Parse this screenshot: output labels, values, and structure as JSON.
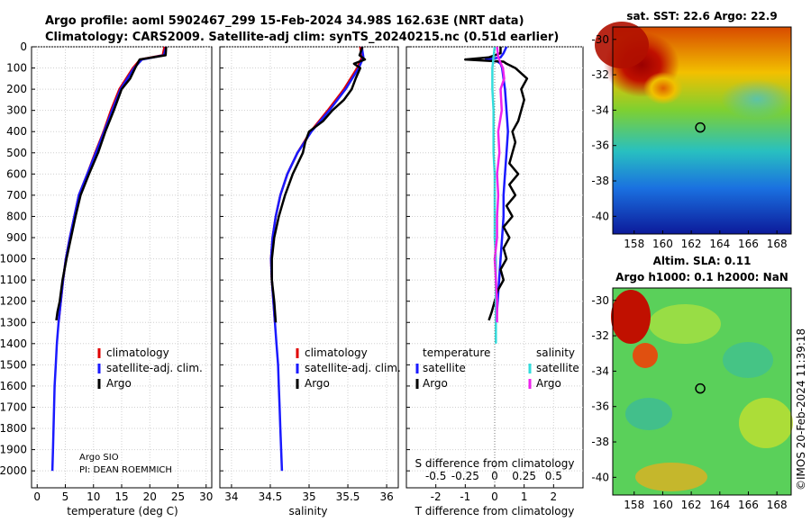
{
  "titles": {
    "line1": "Argo profile: aoml 5902467_299 15-Feb-2024 34.98S 162.63E (NRT data)",
    "line2": "Climatology: CARS2009. Satellite-adj clim: synTS_20240215.nc (0.51d earlier)"
  },
  "legend": {
    "climatology": "climatology",
    "satellite_adj": "satellite-adj. clim.",
    "argo": "Argo",
    "temperature": "temperature",
    "salinity": "salinity",
    "satellite": "satellite"
  },
  "credits": {
    "institution": "Argo SIO",
    "pi": "PI: DEAN ROEMMICH"
  },
  "timestamp": "©IMOS 20-Feb-2024 11:39:18",
  "maps": {
    "sst": {
      "title": "sat. SST: 22.6 Argo: 22.9"
    },
    "sla": {
      "title1": "Altim. SLA: 0.11",
      "title2": "Argo h1000: 0.1 h2000: NaN"
    },
    "lon_ticks": [
      158,
      160,
      162,
      164,
      166,
      168
    ],
    "lat_ticks": [
      -30,
      -32,
      -34,
      -36,
      -38,
      -40
    ],
    "float_lon": 162.63,
    "float_lat": -34.98
  },
  "colors": {
    "climatology": "#e00000",
    "satellite_adj": "#1a1aff",
    "argo": "#000000",
    "cyan": "#33dddd",
    "magenta": "#ee22ee"
  },
  "chart_data": [
    {
      "type": "line",
      "xlabel": "temperature (deg C)",
      "ylabel": "",
      "xlim": [
        -1,
        31
      ],
      "ylim": [
        0,
        2080
      ],
      "xticks": [
        0,
        5,
        10,
        15,
        20,
        25,
        30
      ],
      "yticks": [
        0,
        100,
        200,
        300,
        400,
        500,
        600,
        700,
        800,
        900,
        1000,
        1100,
        1200,
        1300,
        1400,
        1500,
        1600,
        1700,
        1800,
        1900,
        2000
      ],
      "series": [
        {
          "name": "climatology",
          "depth": [
            0,
            40,
            60,
            100,
            150,
            200,
            300,
            400,
            500,
            600,
            700,
            800,
            900,
            1000,
            1100,
            1200,
            1300
          ],
          "values": [
            22.6,
            22.3,
            18.3,
            17.0,
            15.8,
            14.6,
            13.1,
            11.8,
            10.3,
            8.9,
            7.4,
            6.6,
            5.8,
            5.1,
            4.6,
            4.2,
            3.8
          ]
        },
        {
          "name": "satellite-adj. clim.",
          "depth": [
            0,
            40,
            60,
            100,
            150,
            200,
            300,
            400,
            500,
            600,
            700,
            800,
            900,
            1000,
            1100,
            1200,
            1300,
            1400,
            1500,
            1600,
            1700,
            1800,
            1900,
            2000
          ],
          "values": [
            22.9,
            22.5,
            18.6,
            17.2,
            16.0,
            14.8,
            13.3,
            11.9,
            10.4,
            8.9,
            7.4,
            6.6,
            5.8,
            5.1,
            4.6,
            4.2,
            3.8,
            3.5,
            3.3,
            3.1,
            3.0,
            2.9,
            2.8,
            2.7
          ]
        },
        {
          "name": "Argo",
          "depth": [
            0,
            40,
            60,
            80,
            100,
            150,
            200,
            300,
            400,
            500,
            600,
            700,
            800,
            900,
            1000,
            1100,
            1200,
            1250,
            1290
          ],
          "values": [
            22.9,
            22.8,
            18.2,
            17.8,
            17.4,
            16.5,
            15.0,
            13.6,
            12.1,
            10.8,
            9.2,
            7.7,
            6.8,
            6.0,
            5.2,
            4.5,
            4.0,
            3.6,
            3.4
          ]
        }
      ]
    },
    {
      "type": "line",
      "xlabel": "salinity",
      "ylabel": "",
      "xlim": [
        33.85,
        36.15
      ],
      "ylim": [
        0,
        2080
      ],
      "xticks": [
        34,
        34.5,
        35,
        35.5,
        36
      ],
      "series": [
        {
          "name": "climatology",
          "depth": [
            0,
            50,
            100,
            200,
            300,
            400,
            500,
            600,
            700,
            800,
            900,
            1000,
            1100,
            1200,
            1300
          ],
          "values": [
            35.66,
            35.68,
            35.62,
            35.45,
            35.24,
            35.02,
            34.85,
            34.72,
            34.63,
            34.57,
            34.53,
            34.51,
            34.52,
            34.54,
            34.56
          ]
        },
        {
          "name": "satellite-adj. clim.",
          "depth": [
            0,
            50,
            100,
            200,
            300,
            400,
            500,
            600,
            700,
            800,
            900,
            1000,
            1100,
            1200,
            1300,
            1400,
            1500,
            1600,
            1700,
            1800,
            1900,
            2000
          ],
          "values": [
            35.68,
            35.7,
            35.64,
            35.47,
            35.26,
            35.03,
            34.85,
            34.72,
            34.63,
            34.57,
            34.53,
            34.51,
            34.52,
            34.54,
            34.56,
            34.58,
            34.6,
            34.61,
            34.62,
            34.63,
            34.64,
            34.65
          ]
        },
        {
          "name": "Argo",
          "depth": [
            0,
            40,
            60,
            80,
            100,
            150,
            200,
            250,
            300,
            350,
            400,
            450,
            500,
            600,
            700,
            800,
            900,
            1000,
            1100,
            1200,
            1300
          ],
          "values": [
            35.69,
            35.65,
            35.72,
            35.58,
            35.66,
            35.6,
            35.55,
            35.45,
            35.3,
            35.18,
            35.0,
            34.95,
            34.92,
            34.79,
            34.69,
            34.61,
            34.55,
            34.52,
            34.52,
            34.55,
            34.57
          ]
        }
      ]
    },
    {
      "type": "line",
      "xlabel": "T difference from climatology",
      "xlabel2": "S difference from climatology",
      "xlim": [
        -3,
        3
      ],
      "ylim": [
        0,
        2080
      ],
      "xticks": [
        -2,
        -1,
        0,
        1,
        2
      ],
      "xticks_top": [
        -0.5,
        -0.25,
        0,
        0.25,
        0.5
      ],
      "series": [
        {
          "name": "temperature satellite",
          "depth": [
            0,
            30,
            50,
            60,
            70,
            80,
            100,
            150,
            200,
            300,
            400,
            500,
            600,
            700,
            800,
            900,
            1000,
            1100,
            1200,
            1300
          ],
          "values": [
            0.4,
            0.3,
            0.2,
            -0.3,
            0.1,
            0.2,
            0.25,
            0.3,
            0.35,
            0.4,
            0.45,
            0.4,
            0.35,
            0.3,
            0.3,
            0.25,
            0.2,
            0.15,
            0.1,
            0.05
          ]
        },
        {
          "name": "temperature Argo",
          "depth": [
            0,
            30,
            50,
            60,
            65,
            70,
            80,
            100,
            150,
            200,
            250,
            300,
            350,
            400,
            450,
            500,
            550,
            600,
            650,
            700,
            750,
            800,
            850,
            900,
            950,
            1000,
            1050,
            1100,
            1150,
            1200,
            1250,
            1290
          ],
          "values": [
            0.2,
            0.2,
            -0.2,
            -1.0,
            -0.4,
            0.3,
            0.4,
            0.7,
            1.1,
            0.9,
            1.0,
            0.9,
            0.8,
            0.6,
            0.7,
            0.6,
            0.5,
            0.8,
            0.5,
            0.7,
            0.4,
            0.6,
            0.3,
            0.5,
            0.3,
            0.4,
            0.2,
            0.3,
            0.1,
            0.0,
            -0.1,
            -0.2
          ]
        },
        {
          "name": "salinity satellite",
          "depth": [
            0,
            50,
            100,
            200,
            300,
            400,
            500,
            600,
            700,
            800,
            900,
            1000,
            1100,
            1200,
            1300,
            1400
          ],
          "values": [
            0.0,
            -0.01,
            -0.02,
            -0.02,
            -0.01,
            -0.01,
            -0.01,
            0.0,
            0.0,
            0.0,
            0.0,
            0.01,
            0.01,
            0.01,
            0.01,
            0.01
          ]
        },
        {
          "name": "salinity Argo",
          "depth": [
            0,
            50,
            100,
            150,
            200,
            300,
            400,
            500,
            600,
            700,
            800,
            900,
            1000,
            1100,
            1200,
            1300
          ],
          "values": [
            0.02,
            0.03,
            0.07,
            0.08,
            0.05,
            0.06,
            0.03,
            0.04,
            0.02,
            0.03,
            0.02,
            0.02,
            0.0,
            0.01,
            0.02,
            0.02
          ]
        }
      ]
    }
  ]
}
